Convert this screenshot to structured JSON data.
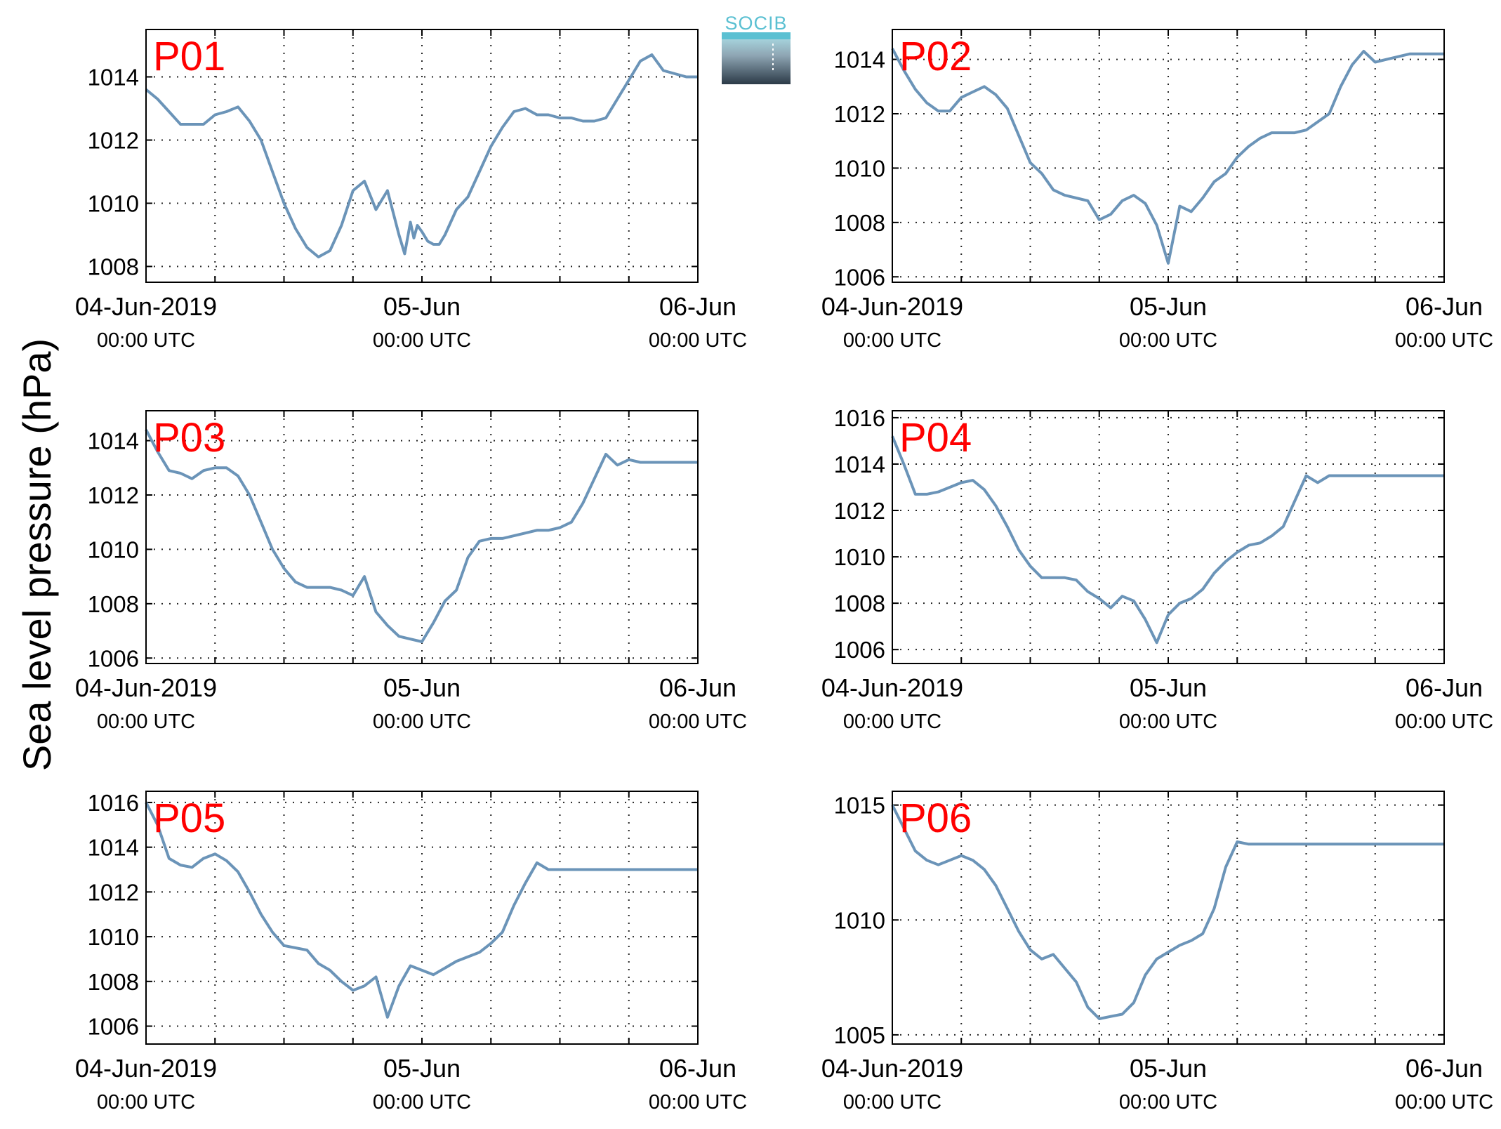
{
  "figure": {
    "ylabel": "Sea level pressure (hPa)",
    "logo_text": "SOCIB",
    "series_color": "#6b94b8",
    "title_color": "#ff0000",
    "x_ticks": [
      {
        "line1": "04-Jun-2019",
        "line2": "00:00 UTC"
      },
      {
        "line1": "05-Jun",
        "line2": "00:00 UTC"
      },
      {
        "line1": "06-Jun",
        "line2": "00:00 UTC"
      }
    ]
  },
  "chart_data": [
    {
      "type": "line",
      "title": "P01",
      "x_unit": "hours since 04-Jun-2019 00:00 UTC",
      "xlim": [
        0,
        48
      ],
      "ylim": [
        1007.5,
        1015.5
      ],
      "yticks": [
        1008,
        1010,
        1012,
        1014
      ],
      "grid": true,
      "x": [
        0,
        1,
        2,
        3,
        4,
        5,
        6,
        7,
        8,
        9,
        10,
        11,
        12,
        13,
        14,
        15,
        16,
        17,
        18,
        19,
        20,
        21,
        22,
        22.5,
        23,
        23.3,
        23.6,
        24,
        24.5,
        25,
        25.5,
        26,
        27,
        28,
        29,
        30,
        31,
        32,
        33,
        34,
        35,
        36,
        37,
        38,
        39,
        40,
        41,
        42,
        43,
        44,
        45,
        46,
        47,
        48
      ],
      "y": [
        1013.6,
        1013.3,
        1012.9,
        1012.5,
        1012.5,
        1012.5,
        1012.8,
        1012.9,
        1013.05,
        1012.6,
        1012.0,
        1011.0,
        1010.0,
        1009.2,
        1008.6,
        1008.3,
        1008.5,
        1009.3,
        1010.4,
        1010.7,
        1009.8,
        1010.4,
        1009.0,
        1008.4,
        1009.4,
        1008.9,
        1009.3,
        1009.1,
        1008.8,
        1008.7,
        1008.7,
        1009.0,
        1009.8,
        1010.2,
        1011.0,
        1011.8,
        1012.4,
        1012.9,
        1013.0,
        1012.8,
        1012.8,
        1012.7,
        1012.7,
        1012.6,
        1012.6,
        1012.7,
        1013.3,
        1013.9,
        1014.5,
        1014.7,
        1014.2,
        1014.1,
        1014.0,
        1014.0
      ]
    },
    {
      "type": "line",
      "title": "P02",
      "x_unit": "hours since 04-Jun-2019 00:00 UTC",
      "xlim": [
        0,
        48
      ],
      "ylim": [
        1005.8,
        1015.1
      ],
      "yticks": [
        1006,
        1008,
        1010,
        1012,
        1014
      ],
      "grid": true,
      "x": [
        0,
        1,
        2,
        3,
        4,
        5,
        6,
        7,
        8,
        9,
        10,
        11,
        12,
        13,
        14,
        15,
        16,
        17,
        18,
        19,
        20,
        21,
        22,
        23,
        24,
        25,
        26,
        27,
        28,
        29,
        30,
        31,
        32,
        33,
        34,
        35,
        36,
        37,
        38,
        39,
        40,
        41,
        42,
        43,
        44,
        45,
        46,
        47,
        48
      ],
      "y": [
        1014.4,
        1013.6,
        1012.9,
        1012.4,
        1012.1,
        1012.1,
        1012.6,
        1012.8,
        1013.0,
        1012.7,
        1012.2,
        1011.2,
        1010.2,
        1009.8,
        1009.2,
        1009.0,
        1008.9,
        1008.8,
        1008.1,
        1008.3,
        1008.8,
        1009.0,
        1008.7,
        1007.9,
        1006.5,
        1008.6,
        1008.4,
        1008.9,
        1009.5,
        1009.8,
        1010.4,
        1010.8,
        1011.1,
        1011.3,
        1011.3,
        1011.3,
        1011.4,
        1011.7,
        1012.0,
        1013.0,
        1013.8,
        1014.3,
        1013.9,
        1014.0,
        1014.1,
        1014.2,
        1014.2,
        1014.2,
        1014.2
      ]
    },
    {
      "type": "line",
      "title": "P03",
      "x_unit": "hours since 04-Jun-2019 00:00 UTC",
      "xlim": [
        0,
        48
      ],
      "ylim": [
        1005.8,
        1015.1
      ],
      "yticks": [
        1006,
        1008,
        1010,
        1012,
        1014
      ],
      "grid": true,
      "x": [
        0,
        1,
        2,
        3,
        4,
        5,
        6,
        7,
        8,
        9,
        10,
        11,
        12,
        13,
        14,
        15,
        16,
        17,
        18,
        19,
        20,
        21,
        22,
        23,
        24,
        25,
        26,
        27,
        28,
        29,
        30,
        31,
        32,
        33,
        34,
        35,
        36,
        37,
        38,
        39,
        40,
        41,
        42,
        43,
        44,
        45,
        46,
        47,
        48
      ],
      "y": [
        1014.4,
        1013.6,
        1012.9,
        1012.8,
        1012.6,
        1012.9,
        1013.0,
        1013.0,
        1012.7,
        1012.0,
        1011.0,
        1010.0,
        1009.3,
        1008.8,
        1008.6,
        1008.6,
        1008.6,
        1008.5,
        1008.3,
        1009.0,
        1007.7,
        1007.2,
        1006.8,
        1006.7,
        1006.6,
        1007.3,
        1008.1,
        1008.5,
        1009.7,
        1010.3,
        1010.4,
        1010.4,
        1010.5,
        1010.6,
        1010.7,
        1010.7,
        1010.8,
        1011.0,
        1011.7,
        1012.6,
        1013.5,
        1013.1,
        1013.3,
        1013.2,
        1013.2,
        1013.2,
        1013.2,
        1013.2,
        1013.2
      ]
    },
    {
      "type": "line",
      "title": "P04",
      "x_unit": "hours since 04-Jun-2019 00:00 UTC",
      "xlim": [
        0,
        48
      ],
      "ylim": [
        1005.4,
        1016.3
      ],
      "yticks": [
        1006,
        1008,
        1010,
        1012,
        1014,
        1016
      ],
      "grid": true,
      "x": [
        0,
        1,
        2,
        3,
        4,
        5,
        6,
        7,
        8,
        9,
        10,
        11,
        12,
        13,
        14,
        15,
        16,
        17,
        18,
        19,
        20,
        21,
        22,
        23,
        24,
        25,
        26,
        27,
        28,
        29,
        30,
        31,
        32,
        33,
        34,
        35,
        36,
        37,
        38,
        39,
        40,
        41,
        42,
        43,
        44,
        45,
        46,
        47,
        48
      ],
      "y": [
        1015.2,
        1014.0,
        1012.7,
        1012.7,
        1012.8,
        1013.0,
        1013.2,
        1013.3,
        1012.9,
        1012.2,
        1011.3,
        1010.3,
        1009.6,
        1009.1,
        1009.1,
        1009.1,
        1009.0,
        1008.5,
        1008.2,
        1007.8,
        1008.3,
        1008.1,
        1007.3,
        1006.3,
        1007.5,
        1008.0,
        1008.2,
        1008.6,
        1009.3,
        1009.8,
        1010.2,
        1010.5,
        1010.6,
        1010.9,
        1011.3,
        1012.4,
        1013.5,
        1013.2,
        1013.5,
        1013.5,
        1013.5,
        1013.5,
        1013.5,
        1013.5,
        1013.5,
        1013.5,
        1013.5,
        1013.5,
        1013.5
      ]
    },
    {
      "type": "line",
      "title": "P05",
      "x_unit": "hours since 04-Jun-2019 00:00 UTC",
      "xlim": [
        0,
        48
      ],
      "ylim": [
        1005.2,
        1016.5
      ],
      "yticks": [
        1006,
        1008,
        1010,
        1012,
        1014,
        1016
      ],
      "grid": true,
      "x": [
        0,
        1,
        2,
        3,
        4,
        5,
        6,
        7,
        8,
        9,
        10,
        11,
        12,
        13,
        14,
        15,
        16,
        17,
        18,
        19,
        20,
        21,
        22,
        23,
        24,
        25,
        26,
        27,
        28,
        29,
        30,
        31,
        32,
        33,
        34,
        35,
        36,
        37,
        38,
        39,
        40,
        41,
        42,
        43,
        44,
        45,
        46,
        47,
        48
      ],
      "y": [
        1016.0,
        1015.0,
        1013.5,
        1013.2,
        1013.1,
        1013.5,
        1013.7,
        1013.4,
        1012.9,
        1012.0,
        1011.0,
        1010.2,
        1009.6,
        1009.5,
        1009.4,
        1008.8,
        1008.5,
        1008.0,
        1007.6,
        1007.8,
        1008.2,
        1006.4,
        1007.8,
        1008.7,
        1008.5,
        1008.3,
        1008.6,
        1008.9,
        1009.1,
        1009.3,
        1009.7,
        1010.2,
        1011.4,
        1012.4,
        1013.3,
        1013.0,
        1013.0,
        1013.0,
        1013.0,
        1013.0,
        1013.0,
        1013.0,
        1013.0,
        1013.0,
        1013.0,
        1013.0,
        1013.0,
        1013.0,
        1013.0
      ]
    },
    {
      "type": "line",
      "title": "P06",
      "x_unit": "hours since 04-Jun-2019 00:00 UTC",
      "xlim": [
        0,
        48
      ],
      "ylim": [
        1004.6,
        1015.6
      ],
      "yticks": [
        1005,
        1010,
        1015
      ],
      "grid": true,
      "x": [
        0,
        1,
        2,
        3,
        4,
        5,
        6,
        7,
        8,
        9,
        10,
        11,
        12,
        13,
        14,
        15,
        16,
        17,
        18,
        19,
        20,
        21,
        22,
        23,
        24,
        25,
        26,
        27,
        28,
        29,
        30,
        31,
        32,
        33,
        34,
        35,
        36,
        37,
        38,
        39,
        40,
        41,
        42,
        43,
        44,
        45,
        46,
        47,
        48
      ],
      "y": [
        1015.0,
        1014.0,
        1013.0,
        1012.6,
        1012.4,
        1012.6,
        1012.8,
        1012.6,
        1012.2,
        1011.5,
        1010.5,
        1009.5,
        1008.7,
        1008.3,
        1008.5,
        1007.9,
        1007.3,
        1006.2,
        1005.7,
        1005.8,
        1005.9,
        1006.4,
        1007.6,
        1008.3,
        1008.6,
        1008.9,
        1009.1,
        1009.4,
        1010.5,
        1012.3,
        1013.4,
        1013.3,
        1013.3,
        1013.3,
        1013.3,
        1013.3,
        1013.3,
        1013.3,
        1013.3,
        1013.3,
        1013.3,
        1013.3,
        1013.3,
        1013.3,
        1013.3,
        1013.3,
        1013.3,
        1013.3,
        1013.3
      ]
    }
  ]
}
